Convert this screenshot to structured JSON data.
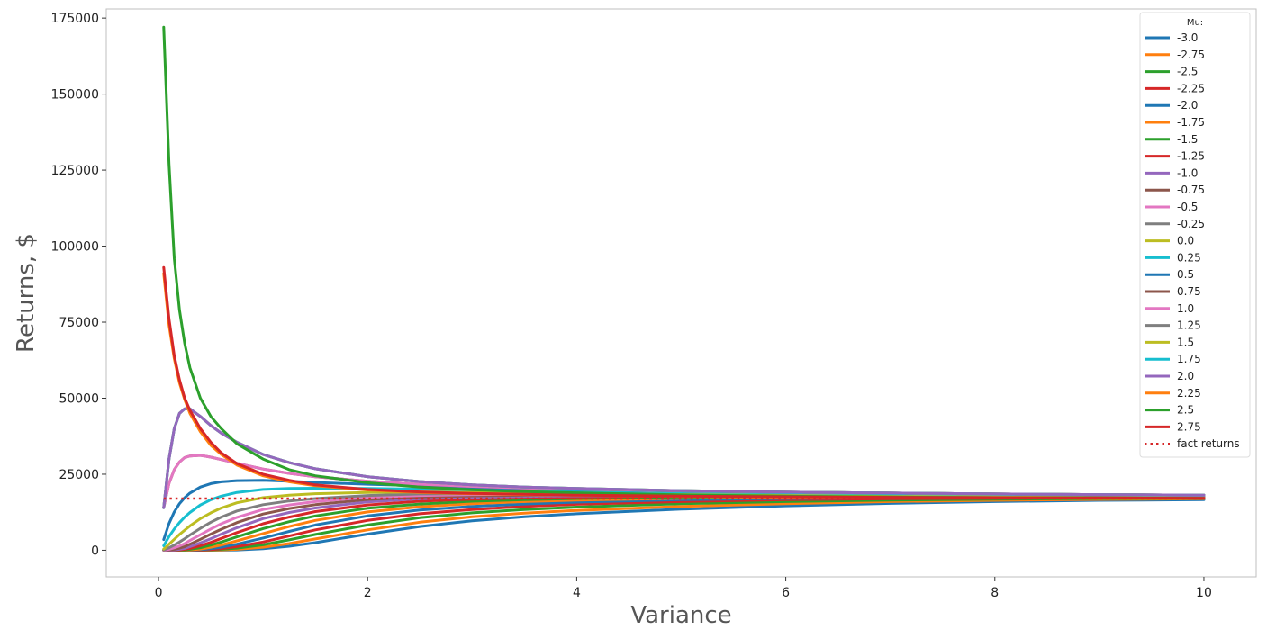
{
  "chart_data": {
    "type": "line",
    "title": "",
    "xlabel": "Variance",
    "ylabel": "Returns, $",
    "xlim": [
      -0.5,
      10.5
    ],
    "ylim": [
      -8750,
      178000
    ],
    "x_ticks": [
      0,
      2,
      4,
      6,
      8,
      10
    ],
    "y_ticks": [
      0,
      25000,
      50000,
      75000,
      100000,
      125000,
      150000,
      175000
    ],
    "grid": false,
    "legend": {
      "title": "Mu:",
      "placement": "top-right"
    },
    "x": [
      0.05,
      0.1,
      0.15,
      0.2,
      0.25,
      0.3,
      0.4,
      0.5,
      0.6,
      0.75,
      1.0,
      1.25,
      1.5,
      2.0,
      2.5,
      3.0,
      3.5,
      4.0,
      5.0,
      6.0,
      7.0,
      8.0,
      9.0,
      10.0
    ],
    "series": [
      {
        "name": "-3.0",
        "color": "#1f77b4",
        "values": [
          0,
          0,
          0,
          0,
          0,
          0,
          0,
          0,
          0,
          100,
          500,
          1300,
          2500,
          5300,
          7800,
          9700,
          11000,
          12000,
          13500,
          14600,
          15400,
          16000,
          16400,
          16600
        ]
      },
      {
        "name": "-2.75",
        "color": "#ff7f0e",
        "values": [
          0,
          0,
          0,
          0,
          0,
          0,
          0,
          0,
          100,
          300,
          1000,
          2200,
          3700,
          6700,
          9200,
          11000,
          12200,
          13100,
          14400,
          15300,
          16000,
          16400,
          16700,
          16900
        ]
      },
      {
        "name": "-2.5",
        "color": "#2ca02c",
        "values": [
          0,
          0,
          0,
          0,
          0,
          0,
          0,
          100,
          300,
          700,
          1800,
          3400,
          5200,
          8300,
          10700,
          12300,
          13400,
          14200,
          15300,
          16000,
          16500,
          16800,
          17000,
          17100
        ]
      },
      {
        "name": "-2.25",
        "color": "#d62728",
        "values": [
          0,
          0,
          0,
          0,
          0,
          0,
          0,
          200,
          500,
          1200,
          2700,
          4700,
          6700,
          9800,
          12000,
          13400,
          14400,
          15100,
          16000,
          16600,
          16900,
          17100,
          17200,
          17300
        ]
      },
      {
        "name": "-2.0",
        "color": "#1f77b4",
        "values": [
          0,
          0,
          0,
          0,
          0,
          0,
          200,
          500,
          1000,
          2000,
          4000,
          6200,
          8300,
          11300,
          13200,
          14400,
          15200,
          15800,
          16600,
          17000,
          17200,
          17300,
          17400,
          17400
        ]
      },
      {
        "name": "-1.75",
        "color": "#ff7f0e",
        "values": [
          0,
          0,
          0,
          0,
          0,
          100,
          400,
          1000,
          1700,
          3100,
          5500,
          7800,
          9800,
          12600,
          14300,
          15300,
          16000,
          16500,
          17100,
          17400,
          17500,
          17500,
          17500,
          17500
        ]
      },
      {
        "name": "-1.5",
        "color": "#2ca02c",
        "values": [
          0,
          0,
          0,
          0,
          100,
          300,
          800,
          1700,
          2700,
          4400,
          7100,
          9400,
          11300,
          13800,
          15200,
          16100,
          16600,
          17000,
          17500,
          17700,
          17700,
          17700,
          17600,
          17600
        ]
      },
      {
        "name": "-1.25",
        "color": "#d62728",
        "values": [
          0,
          0,
          0,
          100,
          300,
          600,
          1500,
          2600,
          3900,
          5800,
          8700,
          10900,
          12700,
          14900,
          16100,
          16800,
          17200,
          17500,
          17800,
          17900,
          17900,
          17800,
          17700,
          17600
        ]
      },
      {
        "name": "-1.0",
        "color": "#9467bd",
        "values": [
          0,
          0,
          100,
          300,
          600,
          1200,
          2400,
          3800,
          5300,
          7400,
          10400,
          12400,
          13900,
          15900,
          16900,
          17400,
          17700,
          17900,
          18100,
          18100,
          18000,
          17900,
          17800,
          17700
        ]
      },
      {
        "name": "-0.75",
        "color": "#8c564b",
        "values": [
          0,
          100,
          300,
          700,
          1200,
          2000,
          3600,
          5300,
          6900,
          9100,
          11900,
          13700,
          15000,
          16700,
          17500,
          17900,
          18100,
          18200,
          18300,
          18200,
          18100,
          18000,
          17900,
          17800
        ]
      },
      {
        "name": "-0.5",
        "color": "#e377c2",
        "values": [
          0,
          300,
          800,
          1400,
          2200,
          3200,
          5100,
          7000,
          8700,
          10800,
          13400,
          14900,
          16000,
          17400,
          18000,
          18300,
          18400,
          18400,
          18400,
          18300,
          18200,
          18000,
          17900,
          17800
        ]
      },
      {
        "name": "-0.25",
        "color": "#7f7f7f",
        "values": [
          100,
          800,
          1700,
          2700,
          3800,
          5000,
          7200,
          9200,
          10900,
          12900,
          15000,
          16200,
          17000,
          18000,
          18500,
          18600,
          18700,
          18700,
          18600,
          18400,
          18300,
          18100,
          18000,
          17900
        ]
      },
      {
        "name": "0.0",
        "color": "#bcbd22",
        "values": [
          400,
          2000,
          3600,
          5200,
          6600,
          8000,
          10400,
          12300,
          13900,
          15600,
          17300,
          18100,
          18600,
          19000,
          19200,
          19200,
          19100,
          19000,
          18800,
          18600,
          18400,
          18200,
          18100,
          18000
        ]
      },
      {
        "name": "0.25",
        "color": "#17becf",
        "values": [
          1500,
          4500,
          7000,
          9100,
          10900,
          12400,
          14900,
          16600,
          17800,
          19000,
          20000,
          20300,
          20400,
          20300,
          20100,
          19900,
          19700,
          19500,
          19200,
          18900,
          18600,
          18400,
          18200,
          18100
        ]
      },
      {
        "name": "0.5",
        "color": "#1f77b4",
        "values": [
          3500,
          8800,
          12600,
          15300,
          17300,
          18800,
          20800,
          21900,
          22500,
          22900,
          23000,
          22700,
          22300,
          21700,
          21200,
          20700,
          20300,
          20000,
          19500,
          19100,
          18800,
          18500,
          18300,
          18100
        ]
      },
      {
        "name": "0.75",
        "color": "#8c564b",
        "values": [
          14000,
          22000,
          26500,
          29000,
          30500,
          31000,
          31200,
          30600,
          29800,
          28600,
          26700,
          25300,
          24200,
          22700,
          21700,
          21000,
          20500,
          20100,
          19500,
          19100,
          18800,
          18500,
          18300,
          18100
        ]
      },
      {
        "name": "1.0",
        "color": "#e377c2",
        "values": [
          14000,
          22000,
          26500,
          29000,
          30500,
          31000,
          31200,
          30600,
          29800,
          28600,
          26700,
          25300,
          24200,
          22700,
          21700,
          21000,
          20500,
          20100,
          19500,
          19100,
          18800,
          18500,
          18300,
          18100
        ]
      },
      {
        "name": "1.25",
        "color": "#7f7f7f",
        "values": [
          14000,
          30000,
          40000,
          45000,
          46500,
          46500,
          44000,
          41000,
          38500,
          35500,
          31500,
          28800,
          26800,
          24200,
          22600,
          21500,
          20800,
          20300,
          19600,
          19100,
          18800,
          18500,
          18300,
          18100
        ]
      },
      {
        "name": "1.5",
        "color": "#bcbd22",
        "values": [
          14000,
          30000,
          40000,
          45000,
          46500,
          46500,
          44000,
          41000,
          38500,
          35500,
          31500,
          28800,
          26800,
          24200,
          22600,
          21500,
          20800,
          20300,
          19600,
          19100,
          18800,
          18500,
          18300,
          18100
        ]
      },
      {
        "name": "1.75",
        "color": "#17becf",
        "values": [
          14000,
          30000,
          40000,
          45000,
          46500,
          46500,
          44000,
          41000,
          38500,
          35500,
          31500,
          28800,
          26800,
          24200,
          22600,
          21500,
          20800,
          20300,
          19600,
          19100,
          18800,
          18500,
          18300,
          18100
        ]
      },
      {
        "name": "2.0",
        "color": "#9467bd",
        "values": [
          14000,
          30000,
          40000,
          45000,
          46500,
          46500,
          44000,
          41000,
          38500,
          35500,
          31500,
          28800,
          26800,
          24200,
          22600,
          21500,
          20800,
          20300,
          19600,
          19100,
          18800,
          18500,
          18300,
          18100
        ]
      },
      {
        "name": "2.25",
        "color": "#ff7f0e",
        "values": [
          91000,
          74000,
          63000,
          55000,
          49500,
          45000,
          39000,
          34500,
          31500,
          28000,
          24500,
          22500,
          21200,
          19800,
          19000,
          18600,
          18300,
          18100,
          17800,
          17600,
          17400,
          17300,
          17200,
          17100
        ]
      },
      {
        "name": "2.5",
        "color": "#2ca02c",
        "values": [
          172000,
          127000,
          96000,
          79000,
          68000,
          60000,
          50000,
          44000,
          40000,
          35000,
          30000,
          26500,
          24500,
          22200,
          20800,
          19900,
          19300,
          18900,
          18200,
          17800,
          17500,
          17300,
          17200,
          17100
        ]
      },
      {
        "name": "2.75",
        "color": "#d62728",
        "values": [
          93000,
          76000,
          64000,
          56000,
          50000,
          46000,
          40000,
          35500,
          32000,
          28500,
          25000,
          23000,
          21500,
          20000,
          19200,
          18700,
          18400,
          18100,
          17800,
          17600,
          17400,
          17300,
          17200,
          17100
        ]
      }
    ],
    "reference_line": {
      "name": "fact returns",
      "value": 17000,
      "color": "#d62728",
      "style": "dotted"
    }
  }
}
